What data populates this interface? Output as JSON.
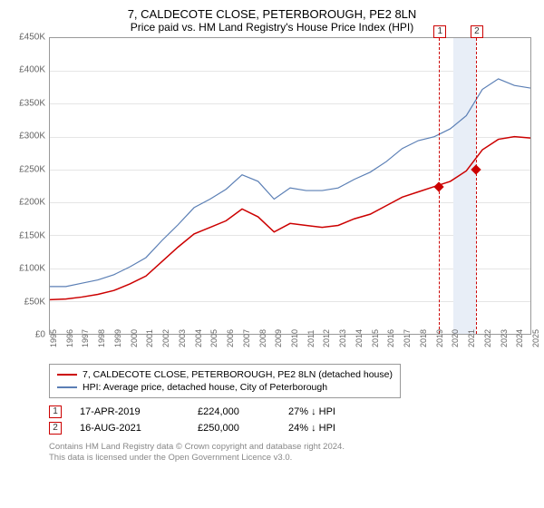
{
  "title": "7, CALDECOTE CLOSE, PETERBOROUGH, PE2 8LN",
  "subtitle": "Price paid vs. HM Land Registry's House Price Index (HPI)",
  "chart": {
    "type": "line",
    "background_color": "#ffffff",
    "grid_color": "#e5e5e5",
    "border_color": "#999999",
    "y_axis": {
      "min": 0,
      "max": 450000,
      "step": 50000,
      "ticks": [
        "£0",
        "£50K",
        "£100K",
        "£150K",
        "£200K",
        "£250K",
        "£300K",
        "£350K",
        "£400K",
        "£450K"
      ],
      "label_fontsize": 10,
      "label_color": "#666666"
    },
    "x_axis": {
      "min": 1995,
      "max": 2025,
      "ticks": [
        1995,
        1996,
        1997,
        1998,
        1999,
        2000,
        2001,
        2002,
        2003,
        2004,
        2005,
        2006,
        2007,
        2008,
        2009,
        2010,
        2011,
        2012,
        2013,
        2014,
        2015,
        2016,
        2017,
        2018,
        2019,
        2020,
        2021,
        2022,
        2023,
        2024,
        2025
      ],
      "label_fontsize": 9,
      "label_color": "#666666",
      "rotation": -90
    },
    "vertical_band": {
      "start_year": 2020.2,
      "end_year": 2021.6,
      "color": "#e8eef7"
    },
    "vertical_markers": [
      {
        "label": "1",
        "year": 2019.3,
        "color": "#cc0000"
      },
      {
        "label": "2",
        "year": 2021.6,
        "color": "#cc0000"
      }
    ],
    "point_markers": [
      {
        "year": 2019.3,
        "value": 224000,
        "color": "#cc0000",
        "shape": "diamond"
      },
      {
        "year": 2021.6,
        "value": 250000,
        "color": "#cc0000",
        "shape": "diamond"
      }
    ],
    "series": [
      {
        "name": "7, CALDECOTE CLOSE, PETERBOROUGH, PE2 8LN (detached house)",
        "color": "#cc0000",
        "line_width": 1.5,
        "data": [
          [
            1995,
            52000
          ],
          [
            1996,
            53000
          ],
          [
            1997,
            56000
          ],
          [
            1998,
            60000
          ],
          [
            1999,
            66000
          ],
          [
            2000,
            76000
          ],
          [
            2001,
            88000
          ],
          [
            2002,
            110000
          ],
          [
            2003,
            132000
          ],
          [
            2004,
            152000
          ],
          [
            2005,
            162000
          ],
          [
            2006,
            172000
          ],
          [
            2007,
            190000
          ],
          [
            2008,
            178000
          ],
          [
            2009,
            155000
          ],
          [
            2010,
            168000
          ],
          [
            2011,
            165000
          ],
          [
            2012,
            162000
          ],
          [
            2013,
            165000
          ],
          [
            2014,
            175000
          ],
          [
            2015,
            182000
          ],
          [
            2016,
            195000
          ],
          [
            2017,
            208000
          ],
          [
            2018,
            216000
          ],
          [
            2019,
            224000
          ],
          [
            2020,
            232000
          ],
          [
            2021,
            248000
          ],
          [
            2022,
            280000
          ],
          [
            2023,
            296000
          ],
          [
            2024,
            300000
          ],
          [
            2025,
            298000
          ]
        ]
      },
      {
        "name": "HPI: Average price, detached house, City of Peterborough",
        "color": "#5b7fb5",
        "line_width": 1.2,
        "data": [
          [
            1995,
            72000
          ],
          [
            1996,
            72000
          ],
          [
            1997,
            77000
          ],
          [
            1998,
            82000
          ],
          [
            1999,
            90000
          ],
          [
            2000,
            102000
          ],
          [
            2001,
            116000
          ],
          [
            2002,
            142000
          ],
          [
            2003,
            166000
          ],
          [
            2004,
            192000
          ],
          [
            2005,
            205000
          ],
          [
            2006,
            220000
          ],
          [
            2007,
            242000
          ],
          [
            2008,
            232000
          ],
          [
            2009,
            205000
          ],
          [
            2010,
            222000
          ],
          [
            2011,
            218000
          ],
          [
            2012,
            218000
          ],
          [
            2013,
            222000
          ],
          [
            2014,
            235000
          ],
          [
            2015,
            246000
          ],
          [
            2016,
            262000
          ],
          [
            2017,
            282000
          ],
          [
            2018,
            294000
          ],
          [
            2019,
            300000
          ],
          [
            2020,
            312000
          ],
          [
            2021,
            332000
          ],
          [
            2022,
            372000
          ],
          [
            2023,
            388000
          ],
          [
            2024,
            378000
          ],
          [
            2025,
            374000
          ]
        ]
      }
    ]
  },
  "legend": {
    "items": [
      {
        "color": "#cc0000",
        "label": "7, CALDECOTE CLOSE, PETERBOROUGH, PE2 8LN (detached house)"
      },
      {
        "color": "#5b7fb5",
        "label": "HPI: Average price, detached house, City of Peterborough"
      }
    ]
  },
  "transactions": [
    {
      "badge": "1",
      "date": "17-APR-2019",
      "price": "£224,000",
      "diff": "27% ↓ HPI"
    },
    {
      "badge": "2",
      "date": "16-AUG-2021",
      "price": "£250,000",
      "diff": "24% ↓ HPI"
    }
  ],
  "footer": {
    "line1": "Contains HM Land Registry data © Crown copyright and database right 2024.",
    "line2": "This data is licensed under the Open Government Licence v3.0."
  }
}
